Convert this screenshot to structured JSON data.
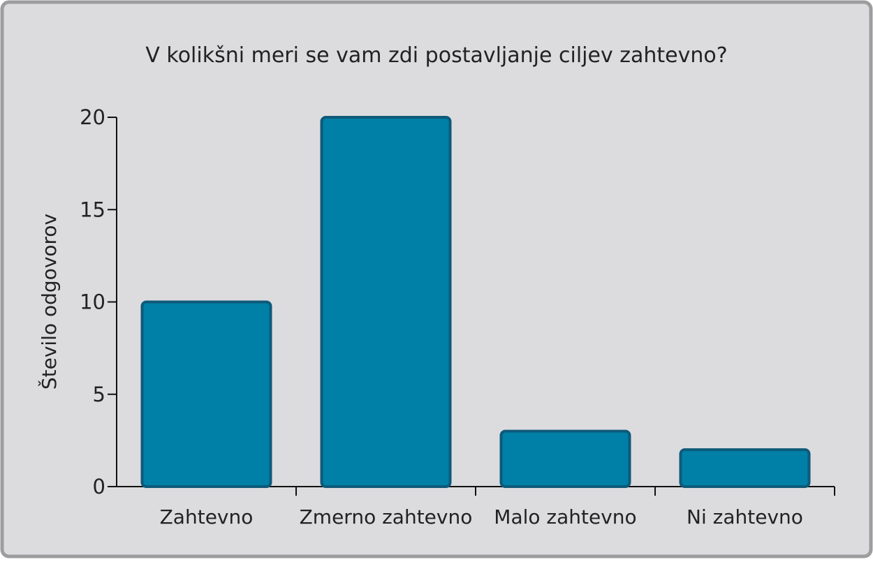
{
  "colors": {
    "background": "#dcdcde",
    "frame_border": "#9d9d9f",
    "bar_fill": "#0080a6",
    "bar_stroke": "#0e5a7a",
    "axis": "#111111"
  },
  "chart_data": {
    "type": "bar",
    "title": "V kolikšni meri se vam zdi postavljanje ciljev zahtevno?",
    "xlabel": "",
    "ylabel": "Število odgovorov",
    "categories": [
      "Zahtevno",
      "Zmerno zahtevno",
      "Malo zahtevno",
      "Ni zahtevno"
    ],
    "values": [
      10,
      20,
      3,
      2
    ],
    "ylim": [
      0,
      20
    ],
    "yticks": [
      0,
      5,
      10,
      15,
      20
    ],
    "grid": false,
    "legend": "none"
  }
}
